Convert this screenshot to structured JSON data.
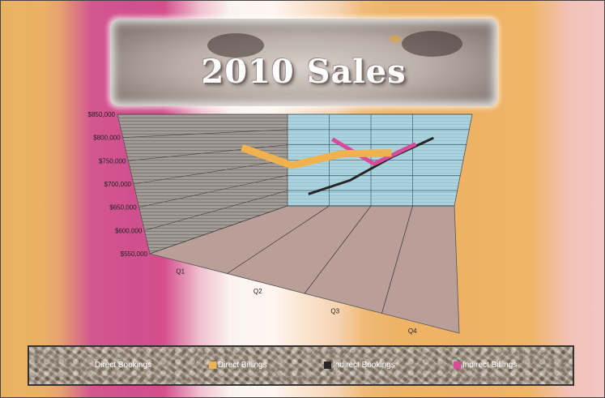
{
  "colors": {
    "direct_bookings": "#f5efe6",
    "direct_billings": "#f0b24e",
    "indirect_bookings": "#262626",
    "indirect_billings": "#d84a9a",
    "back_wall": "#a9d3df",
    "side_wall": "#9c9591",
    "floor": "#b99f98"
  },
  "chart_data": {
    "type": "line",
    "title": "2010 Sales",
    "categories": [
      "Q1",
      "Q2",
      "Q3",
      "Q4"
    ],
    "ylim": [
      550000,
      850000
    ],
    "y_ticks": [
      "$850,000",
      "$800,000",
      "$750,000",
      "$700,000",
      "$650,000",
      "$600,000",
      "$550,000"
    ],
    "legend_position": "bottom",
    "series": [
      {
        "name": "Direct Bookings",
        "values": [
          null,
          null,
          null,
          null
        ]
      },
      {
        "name": "Direct Billings",
        "values": [
          762000,
          704000,
          742000,
          745000
        ]
      },
      {
        "name": "Indirect Bookings",
        "values": [
          610000,
          655000,
          731000,
          794000
        ]
      },
      {
        "name": "Indirect Billings",
        "values": [
          null,
          790000,
          709000,
          774000
        ]
      }
    ]
  }
}
